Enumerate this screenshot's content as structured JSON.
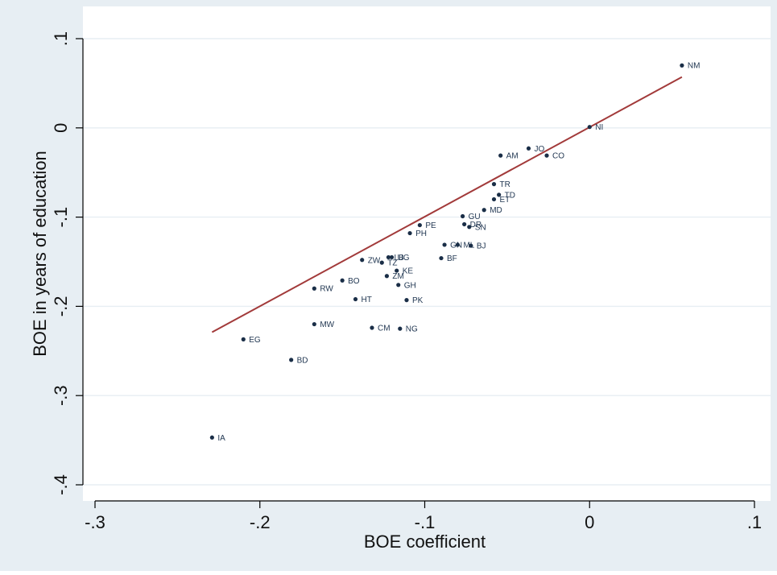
{
  "chart_data": {
    "type": "scatter",
    "xlabel": "BOE coefficient",
    "ylabel": "BOE in years of education",
    "xlim": [
      -0.3,
      0.1
    ],
    "ylim": [
      -0.4,
      0.1
    ],
    "x_ticks": [
      -0.3,
      -0.2,
      -0.1,
      0,
      0.1
    ],
    "x_tick_labels": [
      "-.3",
      "-.2",
      "-.1",
      "0",
      ".1"
    ],
    "y_ticks": [
      -0.4,
      -0.3,
      -0.2,
      -0.1,
      0,
      0.1
    ],
    "y_tick_labels": [
      "-.4",
      "-.3",
      "-.2",
      "-.1",
      "0",
      ".1"
    ],
    "grid": true,
    "colors": {
      "outer_background": "#e7eef3",
      "plot_background": "#ffffff",
      "grid": "#e7eef3",
      "points": "#1a2e47",
      "labels": "#1f3550",
      "fit_line": "#a23a3a"
    },
    "fit_line": {
      "x": [
        -0.229,
        0.056
      ],
      "y": [
        -0.229,
        0.057
      ]
    },
    "points": [
      {
        "label": "NM",
        "x": 0.056,
        "y": 0.07
      },
      {
        "label": "NI",
        "x": 0.0,
        "y": 0.001
      },
      {
        "label": "JO",
        "x": -0.037,
        "y": -0.023
      },
      {
        "label": "AM",
        "x": -0.054,
        "y": -0.031
      },
      {
        "label": "CO",
        "x": -0.026,
        "y": -0.031
      },
      {
        "label": "TR",
        "x": -0.058,
        "y": -0.063
      },
      {
        "label": "TD",
        "x": -0.055,
        "y": -0.075
      },
      {
        "label": "ET",
        "x": -0.058,
        "y": -0.08
      },
      {
        "label": "MD",
        "x": -0.064,
        "y": -0.092
      },
      {
        "label": "GU",
        "x": -0.077,
        "y": -0.099
      },
      {
        "label": "DR",
        "x": -0.076,
        "y": -0.108
      },
      {
        "label": "SN",
        "x": -0.073,
        "y": -0.111
      },
      {
        "label": "PE",
        "x": -0.103,
        "y": -0.109
      },
      {
        "label": "PH",
        "x": -0.109,
        "y": -0.118
      },
      {
        "label": "GN",
        "x": -0.088,
        "y": -0.131
      },
      {
        "label": "ML",
        "x": -0.08,
        "y": -0.131
      },
      {
        "label": "BJ",
        "x": -0.072,
        "y": -0.132
      },
      {
        "label": "BF",
        "x": -0.09,
        "y": -0.146
      },
      {
        "label": "LB",
        "x": -0.122,
        "y": -0.145
      },
      {
        "label": "UG",
        "x": -0.12,
        "y": -0.145
      },
      {
        "label": "ZW",
        "x": -0.138,
        "y": -0.148
      },
      {
        "label": "TZ",
        "x": -0.126,
        "y": -0.151
      },
      {
        "label": "KE",
        "x": -0.117,
        "y": -0.16
      },
      {
        "label": "ZM",
        "x": -0.123,
        "y": -0.166
      },
      {
        "label": "BO",
        "x": -0.15,
        "y": -0.171
      },
      {
        "label": "GH",
        "x": -0.116,
        "y": -0.176
      },
      {
        "label": "RW",
        "x": -0.167,
        "y": -0.18
      },
      {
        "label": "HT",
        "x": -0.142,
        "y": -0.192
      },
      {
        "label": "PK",
        "x": -0.111,
        "y": -0.193
      },
      {
        "label": "MW",
        "x": -0.167,
        "y": -0.22
      },
      {
        "label": "CM",
        "x": -0.132,
        "y": -0.224
      },
      {
        "label": "NG",
        "x": -0.115,
        "y": -0.225
      },
      {
        "label": "EG",
        "x": -0.21,
        "y": -0.237
      },
      {
        "label": "BD",
        "x": -0.181,
        "y": -0.26
      },
      {
        "label": "IA",
        "x": -0.229,
        "y": -0.347
      }
    ]
  }
}
